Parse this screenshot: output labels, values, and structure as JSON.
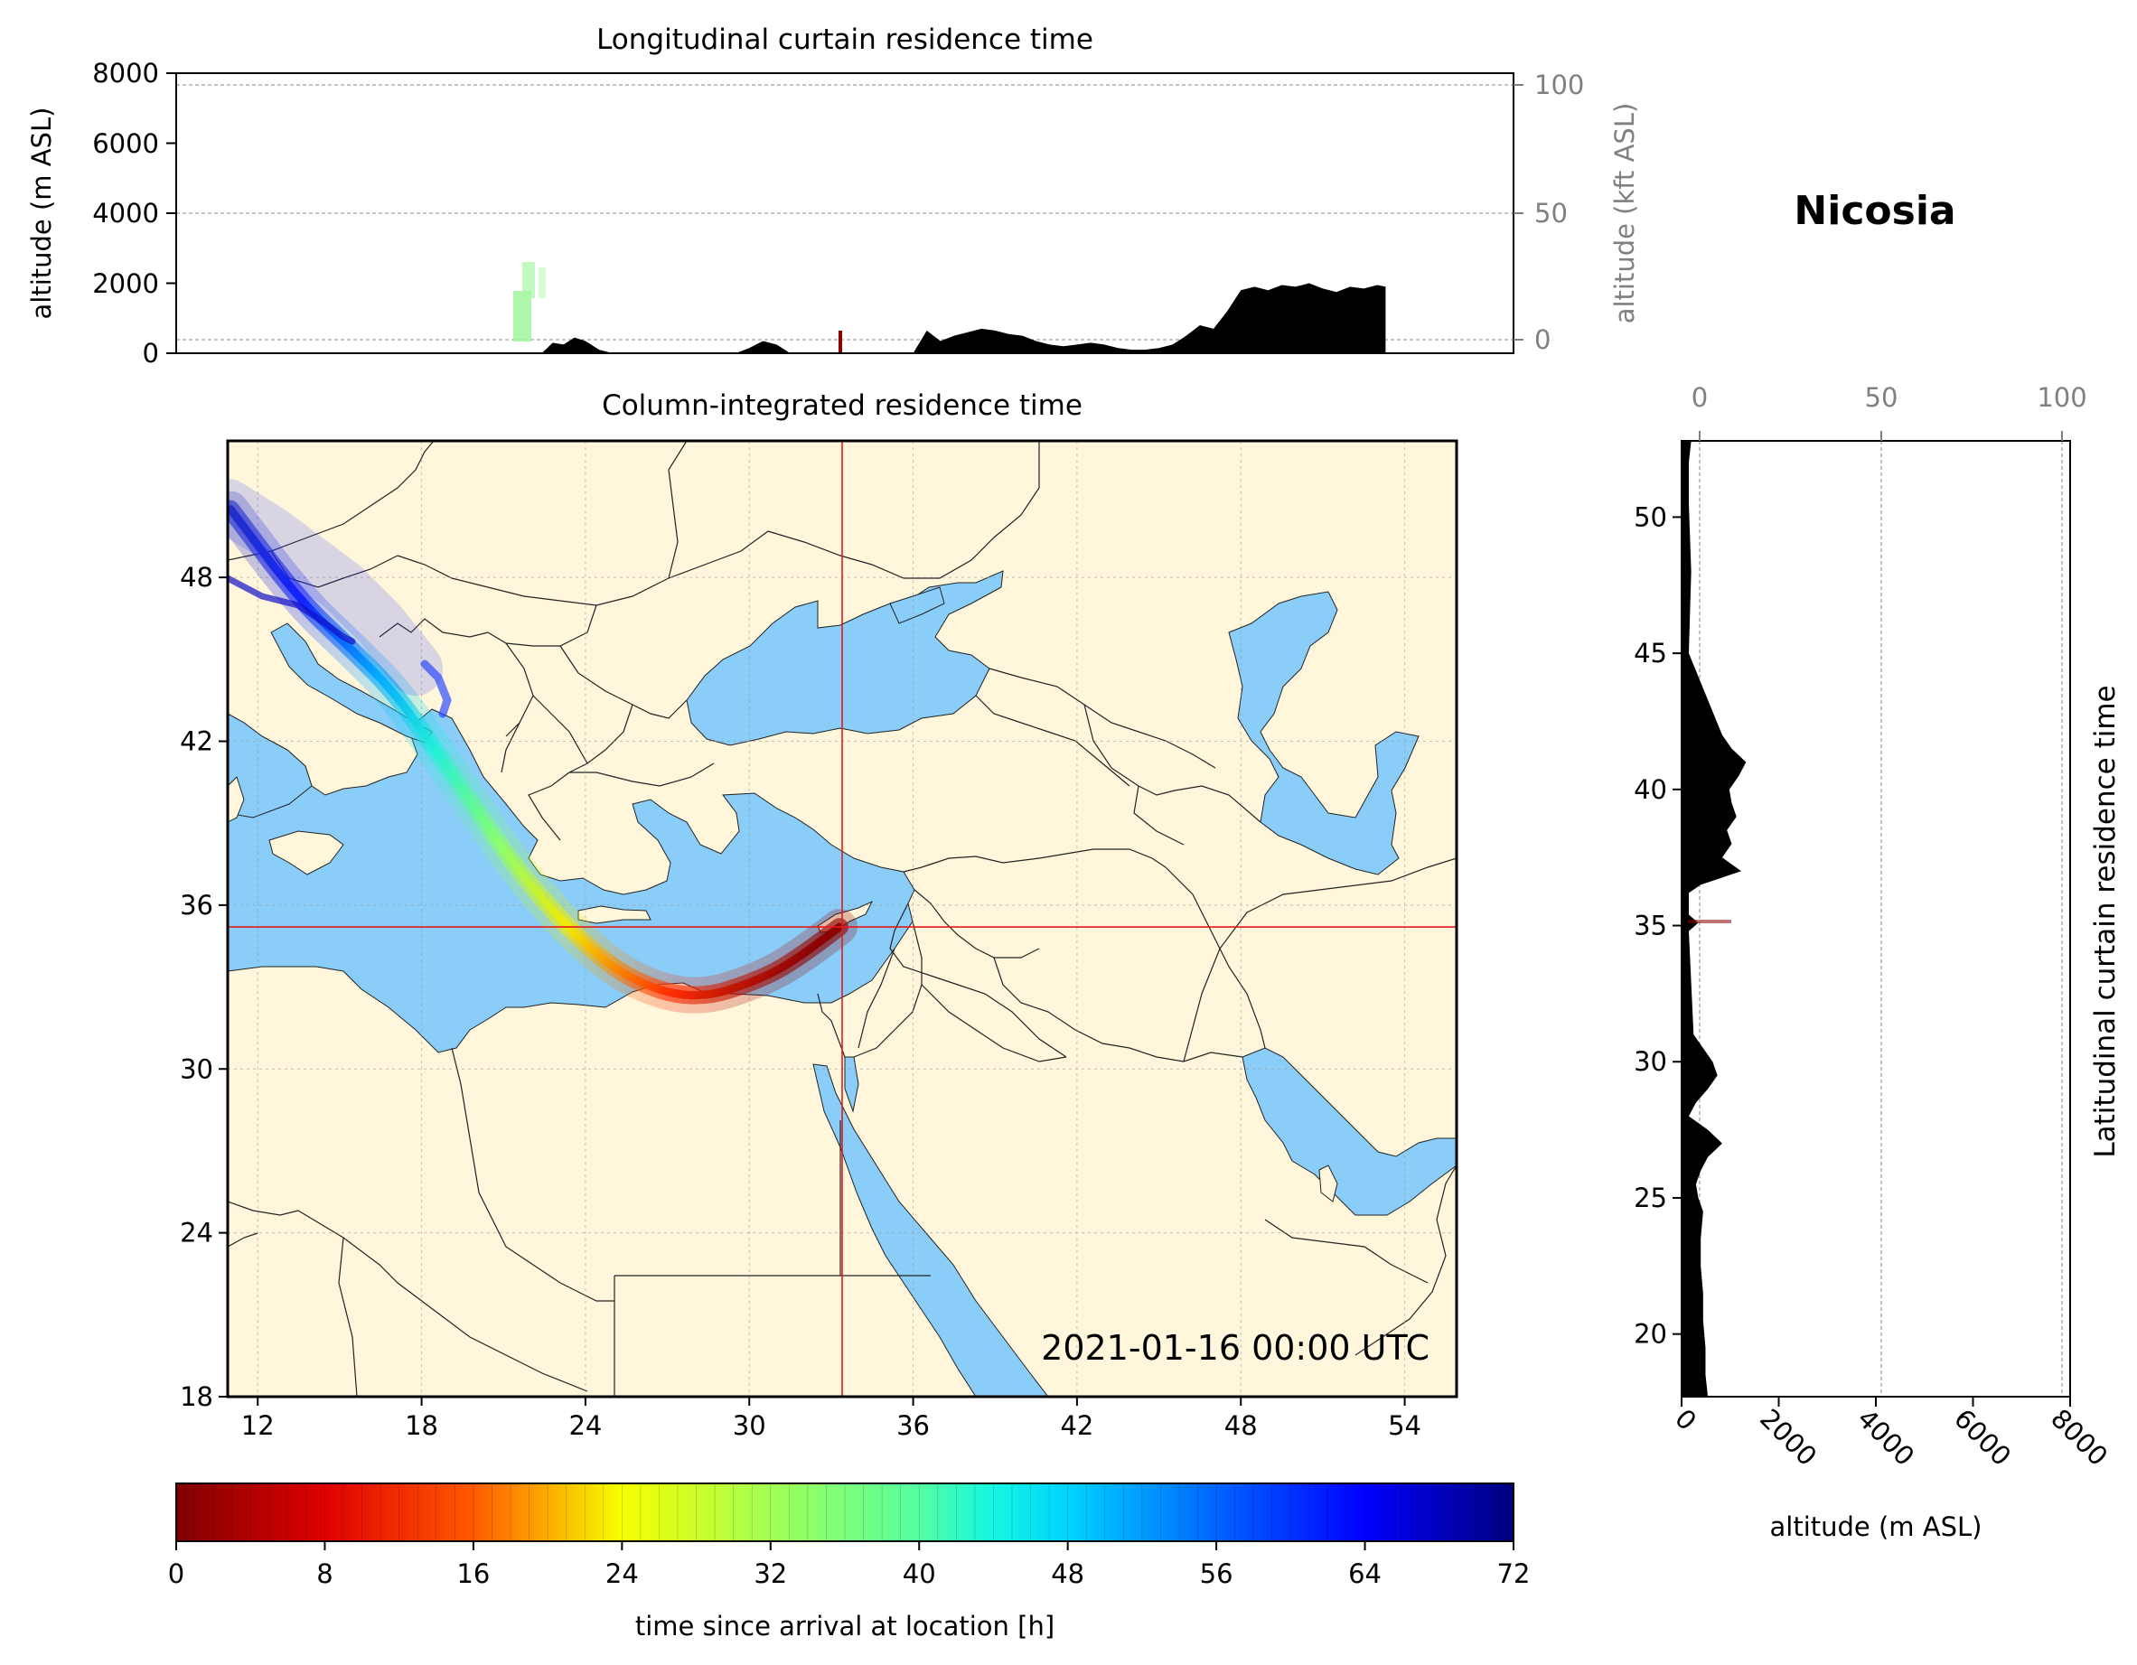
{
  "station": {
    "name": "Nicosia",
    "lon": 33.4,
    "lat": 35.2
  },
  "longitudinal_curtain": {
    "title": "Longitudinal curtain residence time",
    "ylabel": "altitude (m ASL)",
    "ylabel_right": "altitude (kft ASL)",
    "y_ticks": [
      "0",
      "2000",
      "4000",
      "6000",
      "8000"
    ],
    "y_ticks_right": [
      "0",
      "50",
      "100"
    ],
    "ylim": [
      0,
      8000
    ]
  },
  "map": {
    "title": "Column-integrated residence time",
    "timestamp": "2021-01-16 00:00 UTC",
    "x_ticks": [
      "12",
      "18",
      "24",
      "30",
      "36",
      "42",
      "48",
      "54"
    ],
    "y_ticks": [
      "18",
      "24",
      "30",
      "36",
      "42",
      "48"
    ],
    "lon_range": [
      10.9,
      55.9
    ],
    "lat_range": [
      18.0,
      53.0
    ],
    "colors": {
      "land": "#fff6dc",
      "sea": "#89cdf8",
      "border": "#222222",
      "crosshair": "#e31a1c"
    }
  },
  "latitudinal_curtain": {
    "title": "Latitudinal curtain residence time",
    "xlabel": "altitude (m ASL)",
    "x_ticks": [
      "0",
      "2000",
      "4000",
      "6000",
      "8000"
    ],
    "x_ticks_top": [
      "0",
      "50",
      "100"
    ],
    "y_ticks": [
      "20",
      "25",
      "30",
      "35",
      "40",
      "45",
      "50"
    ],
    "xlim": [
      0,
      8000
    ]
  },
  "colorbar": {
    "label": "time since arrival at location [h]",
    "ticks": [
      "0",
      "8",
      "16",
      "24",
      "32",
      "40",
      "48",
      "56",
      "64",
      "72"
    ],
    "range": [
      0,
      72
    ],
    "colormap": "jet_r"
  },
  "chart_data": [
    {
      "type": "area",
      "name": "longitudinal-terrain",
      "x": [
        21.5,
        22.0,
        22.4,
        22.8,
        23.2,
        23.6,
        24.0,
        24.5,
        25.0,
        29.5,
        30.0,
        30.5,
        31.0,
        31.5,
        32.0,
        32.5,
        33.0,
        36.0,
        36.5,
        37.0,
        37.5,
        38.0,
        38.5,
        39.0,
        39.5,
        40.0,
        40.5,
        41.0,
        41.5,
        42.0,
        42.5,
        43.0,
        43.5,
        44.0,
        44.5,
        45.0,
        45.5,
        46.0,
        46.5,
        47.0,
        47.5,
        48.0,
        48.5,
        49.0,
        49.5,
        50.0,
        50.5,
        51.0,
        51.5,
        52.0,
        52.5,
        53.0,
        53.3
      ],
      "y": [
        0,
        0,
        0,
        300,
        250,
        450,
        350,
        100,
        0,
        0,
        150,
        350,
        250,
        0,
        0,
        0,
        0,
        0,
        650,
        350,
        500,
        600,
        700,
        650,
        550,
        500,
        350,
        250,
        200,
        250,
        300,
        250,
        150,
        100,
        100,
        150,
        250,
        500,
        800,
        700,
        1200,
        1800,
        1900,
        1800,
        1950,
        1900,
        2000,
        1850,
        1750,
        1900,
        1850,
        1950,
        1900
      ],
      "xlabel": "",
      "ylabel": "altitude (m ASL)",
      "ylim": [
        0,
        8000
      ]
    },
    {
      "type": "area",
      "name": "latitudinal-terrain",
      "x": [
        17.7,
        18.5,
        19.5,
        20.5,
        21.5,
        22.5,
        23.5,
        24.5,
        25.0,
        25.5,
        26.0,
        26.5,
        27.0,
        27.5,
        28.0,
        28.5,
        29.0,
        29.5,
        30.0,
        30.5,
        31.0,
        34.8,
        35.1,
        35.4,
        36.2,
        36.5,
        37.0,
        37.5,
        38.0,
        38.5,
        39.0,
        39.5,
        40.0,
        40.5,
        41.0,
        41.5,
        42.0,
        45.0,
        48.0,
        50.5,
        52.0,
        52.8
      ],
      "y": [
        400,
        350,
        350,
        300,
        300,
        250,
        250,
        300,
        200,
        150,
        250,
        400,
        700,
        400,
        0,
        150,
        400,
        600,
        500,
        300,
        100,
        0,
        200,
        0,
        0,
        250,
        1100,
        700,
        900,
        800,
        1000,
        900,
        850,
        1050,
        1200,
        900,
        700,
        0,
        50,
        0,
        0,
        50
      ],
      "xlabel": "altitude (m ASL)",
      "ylabel": "",
      "xlim": [
        0,
        8000
      ]
    },
    {
      "type": "line",
      "name": "plume-track",
      "x": [
        33.3,
        32.0,
        30.5,
        28.0,
        25.5,
        23.5,
        21.5,
        20.0,
        18.5,
        17.0,
        15.5,
        13.5,
        11.0
      ],
      "y": [
        35.2,
        34.2,
        33.3,
        32.5,
        33.3,
        35.0,
        37.3,
        39.5,
        41.7,
        43.8,
        45.3,
        47.2,
        50.5
      ],
      "time_h": [
        0,
        4,
        8,
        16,
        24,
        32,
        38,
        44,
        50,
        56,
        62,
        68,
        72
      ]
    }
  ]
}
